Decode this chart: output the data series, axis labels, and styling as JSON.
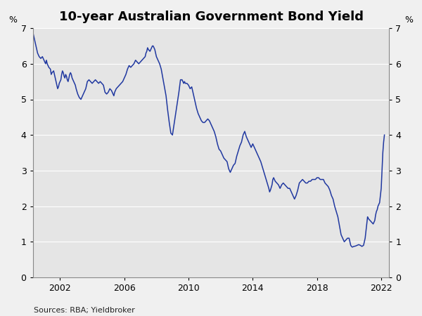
{
  "title": "10-year Australian Government Bond Yield",
  "ylabel_left": "%",
  "ylabel_right": "%",
  "source_text": "Sources: RBA; Yieldbroker",
  "ylim": [
    0,
    7
  ],
  "yticks": [
    0,
    1,
    2,
    3,
    4,
    5,
    6,
    7
  ],
  "xtick_years": [
    2002,
    2006,
    2010,
    2014,
    2018,
    2022
  ],
  "xlim_start": 2000.3,
  "xlim_end": 2022.5,
  "line_color": "#2038a0",
  "fig_background": "#f5f5f5",
  "plot_area_color": "#eaeaea",
  "grid_color": "#ffffff",
  "line_width": 1.1,
  "title_fontsize": 13,
  "tick_fontsize": 9,
  "source_fontsize": 8,
  "series": [
    [
      2000.3,
      6.9
    ],
    [
      2000.4,
      6.7
    ],
    [
      2000.5,
      6.5
    ],
    [
      2000.6,
      6.3
    ],
    [
      2000.7,
      6.2
    ],
    [
      2000.8,
      6.15
    ],
    [
      2000.9,
      6.2
    ],
    [
      2001.0,
      6.1
    ],
    [
      2001.1,
      6.0
    ],
    [
      2001.15,
      6.1
    ],
    [
      2001.2,
      6.0
    ],
    [
      2001.3,
      5.9
    ],
    [
      2001.4,
      5.85
    ],
    [
      2001.45,
      5.7
    ],
    [
      2001.5,
      5.75
    ],
    [
      2001.6,
      5.8
    ],
    [
      2001.65,
      5.7
    ],
    [
      2001.7,
      5.6
    ],
    [
      2001.75,
      5.5
    ],
    [
      2001.8,
      5.4
    ],
    [
      2001.85,
      5.3
    ],
    [
      2001.9,
      5.35
    ],
    [
      2001.95,
      5.45
    ],
    [
      2002.0,
      5.5
    ],
    [
      2002.05,
      5.55
    ],
    [
      2002.1,
      5.7
    ],
    [
      2002.15,
      5.8
    ],
    [
      2002.2,
      5.75
    ],
    [
      2002.25,
      5.65
    ],
    [
      2002.3,
      5.6
    ],
    [
      2002.35,
      5.7
    ],
    [
      2002.4,
      5.65
    ],
    [
      2002.45,
      5.55
    ],
    [
      2002.5,
      5.5
    ],
    [
      2002.55,
      5.6
    ],
    [
      2002.6,
      5.7
    ],
    [
      2002.65,
      5.75
    ],
    [
      2002.7,
      5.7
    ],
    [
      2002.75,
      5.6
    ],
    [
      2002.8,
      5.55
    ],
    [
      2002.85,
      5.5
    ],
    [
      2002.9,
      5.45
    ],
    [
      2002.95,
      5.4
    ],
    [
      2003.0,
      5.3
    ],
    [
      2003.1,
      5.15
    ],
    [
      2003.2,
      5.05
    ],
    [
      2003.3,
      5.0
    ],
    [
      2003.4,
      5.1
    ],
    [
      2003.5,
      5.2
    ],
    [
      2003.6,
      5.3
    ],
    [
      2003.7,
      5.5
    ],
    [
      2003.8,
      5.55
    ],
    [
      2003.9,
      5.5
    ],
    [
      2004.0,
      5.45
    ],
    [
      2004.1,
      5.5
    ],
    [
      2004.2,
      5.55
    ],
    [
      2004.3,
      5.5
    ],
    [
      2004.4,
      5.45
    ],
    [
      2004.5,
      5.5
    ],
    [
      2004.6,
      5.45
    ],
    [
      2004.7,
      5.4
    ],
    [
      2004.75,
      5.3
    ],
    [
      2004.8,
      5.2
    ],
    [
      2004.9,
      5.15
    ],
    [
      2005.0,
      5.2
    ],
    [
      2005.1,
      5.3
    ],
    [
      2005.2,
      5.25
    ],
    [
      2005.3,
      5.15
    ],
    [
      2005.35,
      5.1
    ],
    [
      2005.4,
      5.2
    ],
    [
      2005.5,
      5.3
    ],
    [
      2005.6,
      5.35
    ],
    [
      2005.7,
      5.4
    ],
    [
      2005.8,
      5.45
    ],
    [
      2005.9,
      5.5
    ],
    [
      2006.0,
      5.6
    ],
    [
      2006.1,
      5.7
    ],
    [
      2006.2,
      5.85
    ],
    [
      2006.3,
      5.95
    ],
    [
      2006.4,
      5.9
    ],
    [
      2006.5,
      5.95
    ],
    [
      2006.6,
      6.0
    ],
    [
      2006.65,
      6.05
    ],
    [
      2006.7,
      6.1
    ],
    [
      2006.8,
      6.05
    ],
    [
      2006.9,
      6.0
    ],
    [
      2007.0,
      6.05
    ],
    [
      2007.1,
      6.1
    ],
    [
      2007.2,
      6.15
    ],
    [
      2007.3,
      6.2
    ],
    [
      2007.35,
      6.3
    ],
    [
      2007.4,
      6.35
    ],
    [
      2007.45,
      6.45
    ],
    [
      2007.5,
      6.4
    ],
    [
      2007.6,
      6.35
    ],
    [
      2007.65,
      6.4
    ],
    [
      2007.7,
      6.45
    ],
    [
      2007.75,
      6.5
    ],
    [
      2007.8,
      6.5
    ],
    [
      2007.85,
      6.45
    ],
    [
      2007.9,
      6.4
    ],
    [
      2007.95,
      6.3
    ],
    [
      2008.0,
      6.2
    ],
    [
      2008.1,
      6.1
    ],
    [
      2008.2,
      6.0
    ],
    [
      2008.3,
      5.85
    ],
    [
      2008.4,
      5.6
    ],
    [
      2008.5,
      5.35
    ],
    [
      2008.6,
      5.1
    ],
    [
      2008.7,
      4.7
    ],
    [
      2008.8,
      4.35
    ],
    [
      2008.9,
      4.05
    ],
    [
      2009.0,
      4.0
    ],
    [
      2009.05,
      4.15
    ],
    [
      2009.1,
      4.3
    ],
    [
      2009.2,
      4.6
    ],
    [
      2009.3,
      4.9
    ],
    [
      2009.4,
      5.2
    ],
    [
      2009.5,
      5.55
    ],
    [
      2009.6,
      5.55
    ],
    [
      2009.65,
      5.5
    ],
    [
      2009.7,
      5.45
    ],
    [
      2009.75,
      5.5
    ],
    [
      2009.8,
      5.45
    ],
    [
      2009.9,
      5.45
    ],
    [
      2010.0,
      5.4
    ],
    [
      2010.1,
      5.3
    ],
    [
      2010.2,
      5.35
    ],
    [
      2010.3,
      5.15
    ],
    [
      2010.4,
      4.95
    ],
    [
      2010.5,
      4.75
    ],
    [
      2010.6,
      4.6
    ],
    [
      2010.7,
      4.5
    ],
    [
      2010.8,
      4.4
    ],
    [
      2010.9,
      4.35
    ],
    [
      2011.0,
      4.35
    ],
    [
      2011.1,
      4.4
    ],
    [
      2011.2,
      4.45
    ],
    [
      2011.3,
      4.4
    ],
    [
      2011.4,
      4.3
    ],
    [
      2011.5,
      4.2
    ],
    [
      2011.6,
      4.1
    ],
    [
      2011.7,
      3.95
    ],
    [
      2011.8,
      3.75
    ],
    [
      2011.9,
      3.6
    ],
    [
      2012.0,
      3.55
    ],
    [
      2012.1,
      3.45
    ],
    [
      2012.2,
      3.35
    ],
    [
      2012.3,
      3.3
    ],
    [
      2012.4,
      3.25
    ],
    [
      2012.5,
      3.05
    ],
    [
      2012.6,
      2.95
    ],
    [
      2012.7,
      3.05
    ],
    [
      2012.8,
      3.15
    ],
    [
      2012.9,
      3.2
    ],
    [
      2013.0,
      3.4
    ],
    [
      2013.1,
      3.55
    ],
    [
      2013.2,
      3.7
    ],
    [
      2013.3,
      3.8
    ],
    [
      2013.4,
      4.0
    ],
    [
      2013.5,
      4.1
    ],
    [
      2013.6,
      3.95
    ],
    [
      2013.7,
      3.85
    ],
    [
      2013.8,
      3.75
    ],
    [
      2013.9,
      3.65
    ],
    [
      2014.0,
      3.75
    ],
    [
      2014.1,
      3.65
    ],
    [
      2014.2,
      3.55
    ],
    [
      2014.3,
      3.45
    ],
    [
      2014.4,
      3.35
    ],
    [
      2014.5,
      3.25
    ],
    [
      2014.6,
      3.1
    ],
    [
      2014.7,
      2.95
    ],
    [
      2014.8,
      2.8
    ],
    [
      2014.9,
      2.65
    ],
    [
      2015.0,
      2.5
    ],
    [
      2015.05,
      2.4
    ],
    [
      2015.1,
      2.45
    ],
    [
      2015.2,
      2.6
    ],
    [
      2015.25,
      2.75
    ],
    [
      2015.3,
      2.8
    ],
    [
      2015.4,
      2.7
    ],
    [
      2015.5,
      2.65
    ],
    [
      2015.6,
      2.6
    ],
    [
      2015.7,
      2.5
    ],
    [
      2015.8,
      2.6
    ],
    [
      2015.9,
      2.65
    ],
    [
      2016.0,
      2.6
    ],
    [
      2016.1,
      2.55
    ],
    [
      2016.2,
      2.5
    ],
    [
      2016.3,
      2.5
    ],
    [
      2016.4,
      2.4
    ],
    [
      2016.5,
      2.3
    ],
    [
      2016.6,
      2.2
    ],
    [
      2016.7,
      2.3
    ],
    [
      2016.8,
      2.45
    ],
    [
      2016.9,
      2.65
    ],
    [
      2017.0,
      2.7
    ],
    [
      2017.1,
      2.75
    ],
    [
      2017.2,
      2.7
    ],
    [
      2017.3,
      2.65
    ],
    [
      2017.4,
      2.65
    ],
    [
      2017.5,
      2.7
    ],
    [
      2017.6,
      2.7
    ],
    [
      2017.7,
      2.75
    ],
    [
      2017.8,
      2.75
    ],
    [
      2017.9,
      2.75
    ],
    [
      2018.0,
      2.8
    ],
    [
      2018.1,
      2.8
    ],
    [
      2018.2,
      2.75
    ],
    [
      2018.3,
      2.75
    ],
    [
      2018.4,
      2.75
    ],
    [
      2018.5,
      2.65
    ],
    [
      2018.6,
      2.6
    ],
    [
      2018.7,
      2.55
    ],
    [
      2018.8,
      2.45
    ],
    [
      2018.9,
      2.3
    ],
    [
      2019.0,
      2.2
    ],
    [
      2019.1,
      2.0
    ],
    [
      2019.2,
      1.85
    ],
    [
      2019.3,
      1.7
    ],
    [
      2019.4,
      1.45
    ],
    [
      2019.5,
      1.2
    ],
    [
      2019.6,
      1.1
    ],
    [
      2019.7,
      1.0
    ],
    [
      2019.8,
      1.05
    ],
    [
      2019.9,
      1.1
    ],
    [
      2020.0,
      1.1
    ],
    [
      2020.05,
      1.0
    ],
    [
      2020.1,
      0.9
    ],
    [
      2020.15,
      0.87
    ],
    [
      2020.2,
      0.85
    ],
    [
      2020.3,
      0.87
    ],
    [
      2020.4,
      0.88
    ],
    [
      2020.5,
      0.9
    ],
    [
      2020.6,
      0.92
    ],
    [
      2020.7,
      0.9
    ],
    [
      2020.8,
      0.87
    ],
    [
      2020.9,
      0.9
    ],
    [
      2021.0,
      1.1
    ],
    [
      2021.1,
      1.5
    ],
    [
      2021.15,
      1.7
    ],
    [
      2021.2,
      1.65
    ],
    [
      2021.3,
      1.6
    ],
    [
      2021.4,
      1.55
    ],
    [
      2021.5,
      1.5
    ],
    [
      2021.6,
      1.6
    ],
    [
      2021.65,
      1.75
    ],
    [
      2021.7,
      1.85
    ],
    [
      2021.75,
      1.9
    ],
    [
      2021.8,
      2.0
    ],
    [
      2021.9,
      2.1
    ],
    [
      2022.0,
      2.5
    ],
    [
      2022.05,
      3.0
    ],
    [
      2022.1,
      3.5
    ],
    [
      2022.15,
      3.8
    ],
    [
      2022.2,
      4.0
    ]
  ]
}
